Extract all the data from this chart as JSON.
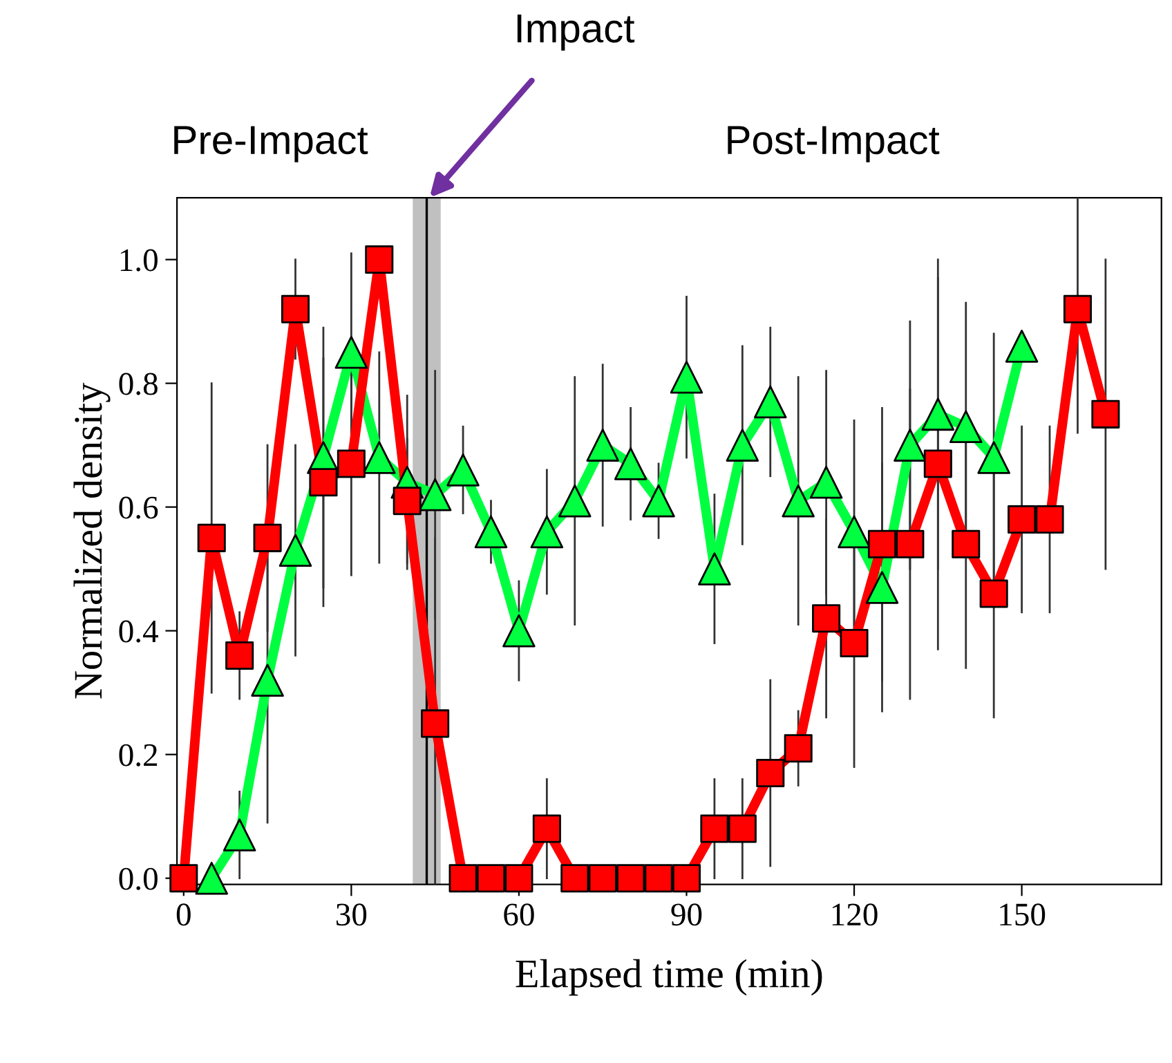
{
  "chart_data": {
    "type": "line",
    "xlabel": "Elapsed time (min)",
    "ylabel": "Normalized density",
    "xlim": [
      -1.2,
      175
    ],
    "ylim": [
      -0.01,
      1.1
    ],
    "xticks": [
      0,
      30,
      60,
      90,
      120,
      150
    ],
    "yticks": [
      {
        "value": 0,
        "label": "0.0"
      },
      {
        "value": 0.2,
        "label": "0.2"
      },
      {
        "value": 0.4,
        "label": "0.4"
      },
      {
        "value": 0.6,
        "label": "0.6"
      },
      {
        "value": 0.8,
        "label": "0.8"
      },
      {
        "value": 1.0,
        "label": "1.0"
      }
    ],
    "grid": false,
    "line_style": "solid",
    "series": [
      {
        "color": "#00ff40",
        "marker": "triangle",
        "x": [
          5,
          10,
          15,
          20,
          25,
          30,
          35,
          40,
          45,
          50,
          55,
          60,
          65,
          70,
          75,
          80,
          85,
          90,
          95,
          100,
          105,
          110,
          115,
          120,
          125,
          130,
          135,
          140,
          145,
          150
        ],
        "values": [
          0.0,
          0.07,
          0.32,
          0.53,
          0.68,
          0.85,
          0.68,
          0.64,
          0.62,
          0.66,
          0.56,
          0.4,
          0.56,
          0.61,
          0.7,
          0.67,
          0.61,
          0.81,
          0.5,
          0.7,
          0.77,
          0.61,
          0.64,
          0.56,
          0.47,
          0.7,
          0.75,
          0.73,
          0.68,
          0.86
        ],
        "errors": [
          null,
          0.07,
          0.23,
          0.17,
          0.21,
          0.16,
          0.17,
          0.14,
          0.2,
          0.07,
          0.05,
          0.08,
          0.1,
          0.2,
          0.13,
          0.09,
          0.06,
          0.13,
          0.12,
          0.16,
          0.12,
          0.2,
          0.18,
          0.18,
          0.2,
          0.2,
          0.25,
          0.2,
          0.2,
          null
        ]
      },
      {
        "color": "#ff0000",
        "marker": "square",
        "x": [
          0,
          5,
          10,
          15,
          20,
          25,
          30,
          35,
          40,
          45,
          50,
          55,
          60,
          65,
          70,
          75,
          80,
          85,
          90,
          95,
          100,
          105,
          110,
          115,
          120,
          125,
          130,
          135,
          140,
          145,
          150,
          155,
          160,
          165
        ],
        "values": [
          0,
          0.55,
          0.36,
          0.55,
          0.92,
          0.64,
          0.67,
          1.0,
          0.61,
          0.25,
          0,
          0,
          0,
          0.08,
          0,
          0,
          0,
          0,
          0,
          0.08,
          0.08,
          0.17,
          0.21,
          0.42,
          0.38,
          0.54,
          0.54,
          0.67,
          0.54,
          0.46,
          0.58,
          0.58,
          0.92,
          0.75
        ],
        "errors": [
          null,
          0.25,
          0.07,
          0.15,
          0.08,
          0.2,
          0.18,
          null,
          0.1,
          0.3,
          null,
          null,
          null,
          0.08,
          null,
          null,
          null,
          null,
          null,
          0.08,
          0.08,
          0.15,
          0.06,
          0.16,
          0.2,
          0.22,
          0.25,
          0.3,
          0.2,
          0.2,
          0.15,
          0.15,
          0.2,
          0.25
        ]
      }
    ],
    "bands": [
      {
        "axis": "x",
        "from": 41,
        "to": 46,
        "color": "#c0c0c0"
      }
    ],
    "ref_lines": [
      {
        "axis": "x",
        "value": 43.5,
        "color": "#000000"
      }
    ],
    "annotations": [
      {
        "text": "Impact",
        "x": 44,
        "y": 1.1
      },
      "Pre-Impact",
      "Post-Impact"
    ]
  }
}
